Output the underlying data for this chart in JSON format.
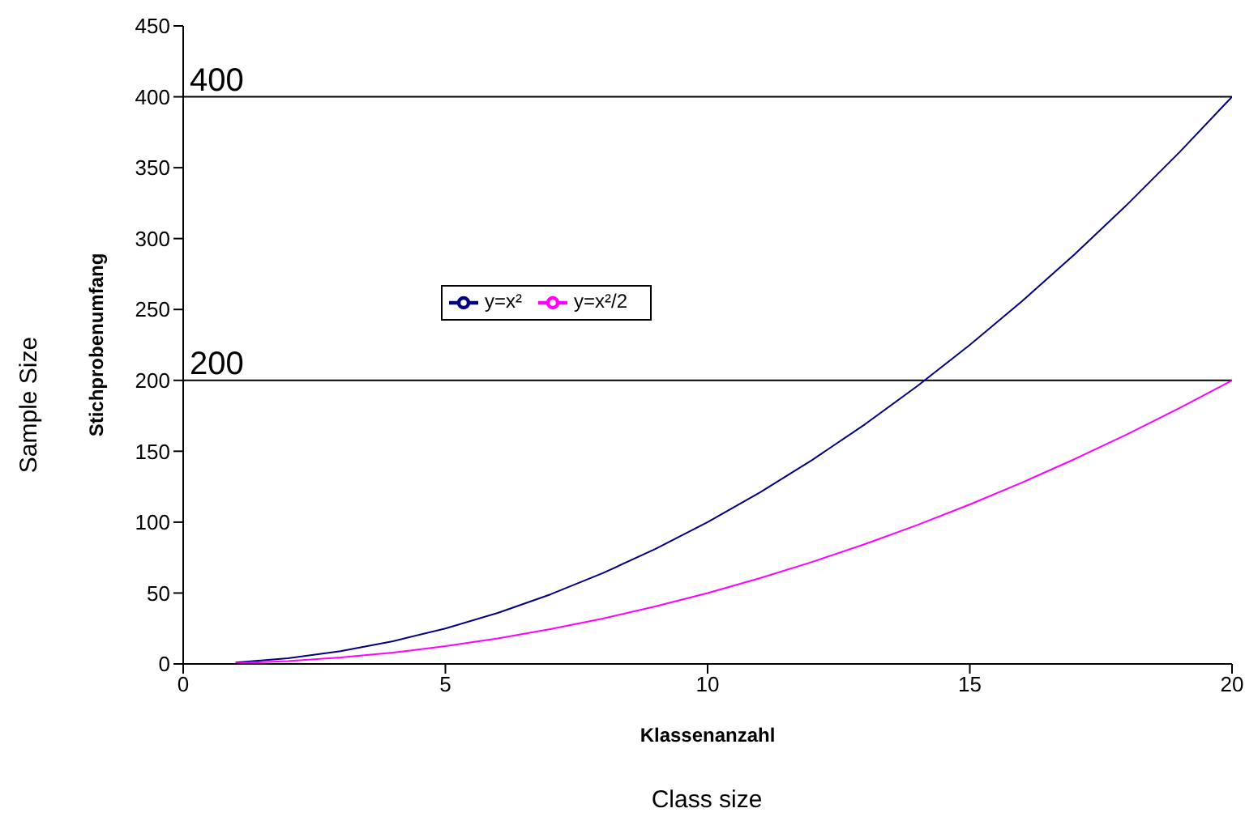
{
  "chart_data": {
    "type": "line",
    "xlabel": "Klassenanzahl",
    "ylabel": "Stichprobenumfang",
    "annotations": [
      "Sample Size",
      "Class size"
    ],
    "x": [
      1,
      2,
      3,
      4,
      5,
      6,
      7,
      8,
      9,
      10,
      11,
      12,
      13,
      14,
      15,
      16,
      17,
      18,
      19,
      20
    ],
    "series": [
      {
        "name": "y=x²",
        "color": "#000080",
        "values": [
          1,
          4,
          9,
          16,
          25,
          36,
          49,
          64,
          81,
          100,
          121,
          144,
          169,
          196,
          225,
          256,
          289,
          324,
          361,
          400
        ]
      },
      {
        "name": "y=x²/2",
        "color": "#ff00ff",
        "values": [
          0.5,
          2,
          4.5,
          8,
          12.5,
          18,
          24.5,
          32,
          40.5,
          50,
          60.5,
          72,
          84.5,
          98,
          112.5,
          128,
          144.5,
          162,
          180.5,
          200
        ]
      }
    ],
    "xlim": [
      0,
      20
    ],
    "xticks": [
      0,
      5,
      10,
      15,
      20
    ],
    "ylim": [
      0,
      450
    ],
    "yticks": [
      0,
      50,
      100,
      150,
      200,
      250,
      300,
      350,
      400,
      450
    ],
    "ref_lines": [
      {
        "axis": "y",
        "value": 400,
        "label": "400"
      },
      {
        "axis": "y",
        "value": 200,
        "label": "200"
      }
    ],
    "grid": false,
    "legend": "center",
    "marker": "none",
    "line_style": "solid"
  }
}
